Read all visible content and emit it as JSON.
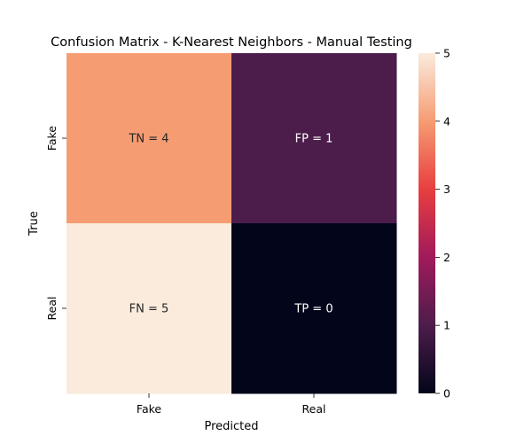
{
  "chart_data": {
    "type": "heatmap",
    "title": "Confusion Matrix - K-Nearest Neighbors - Manual Testing",
    "xlabel": "Predicted",
    "ylabel": "True",
    "x_categories": [
      "Fake",
      "Real"
    ],
    "y_categories": [
      "Fake",
      "Real"
    ],
    "values": [
      [
        4,
        1
      ],
      [
        5,
        0
      ]
    ],
    "cell_labels": [
      [
        "TN = 4",
        "FP = 1"
      ],
      [
        "FN = 5",
        "TP = 0"
      ]
    ],
    "color_range": [
      0,
      5
    ],
    "colorbar_ticks": [
      "0",
      "1",
      "2",
      "3",
      "4",
      "5"
    ],
    "colormap": "rocket",
    "colormap_stops": [
      "#03051a",
      "#4c1d4b",
      "#a11a5b",
      "#e83f3f",
      "#f69c73",
      "#faebdd"
    ],
    "cell_text_colors": [
      [
        "#262626",
        "#ffffff"
      ],
      [
        "#262626",
        "#ffffff"
      ]
    ]
  }
}
